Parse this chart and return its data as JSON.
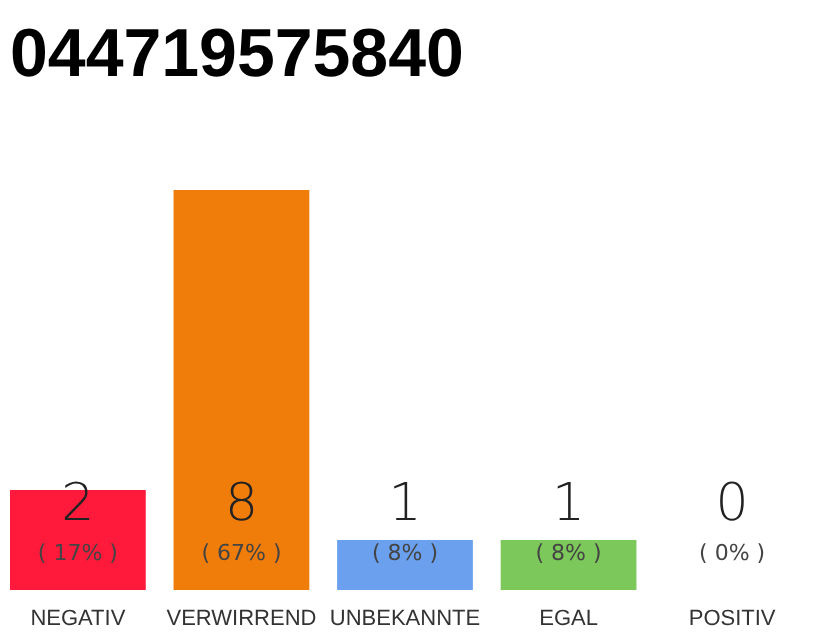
{
  "chart_data": {
    "type": "bar",
    "title": "044719575840",
    "categories": [
      "NEGATIV",
      "VERWIRREND",
      "UNBEKANNTE",
      "EGAL",
      "POSITIV"
    ],
    "values": [
      2,
      8,
      1,
      1,
      0
    ],
    "colors": [
      "#ff1a3c",
      "#f07d0a",
      "#6aa0ee",
      "#7cc85a",
      "#2aa84a"
    ],
    "data_labels": true,
    "annotations": [
      "( 17% )",
      "( 67% )",
      "( 8% )",
      "( 8% )",
      "( 0% )"
    ]
  }
}
